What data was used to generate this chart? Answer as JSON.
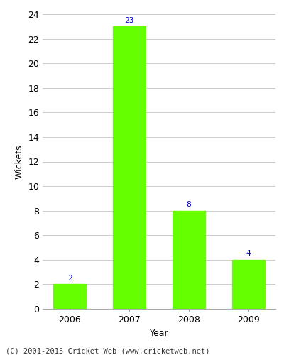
{
  "years": [
    "2006",
    "2007",
    "2008",
    "2009"
  ],
  "values": [
    2,
    23,
    8,
    4
  ],
  "bar_color": "#66ff00",
  "bar_edgecolor": "#66ff00",
  "xlabel": "Year",
  "ylabel": "Wickets",
  "ylim": [
    0,
    24
  ],
  "yticks": [
    0,
    2,
    4,
    6,
    8,
    10,
    12,
    14,
    16,
    18,
    20,
    22,
    24
  ],
  "label_color": "#0000cc",
  "label_fontsize": 8,
  "axis_fontsize": 9,
  "tick_fontsize": 9,
  "footer_text": "(C) 2001-2015 Cricket Web (www.cricketweb.net)",
  "footer_fontsize": 7.5,
  "background_color": "#ffffff",
  "plot_bg_color": "#ffffff",
  "grid_color": "#cccccc",
  "bar_width": 0.55
}
